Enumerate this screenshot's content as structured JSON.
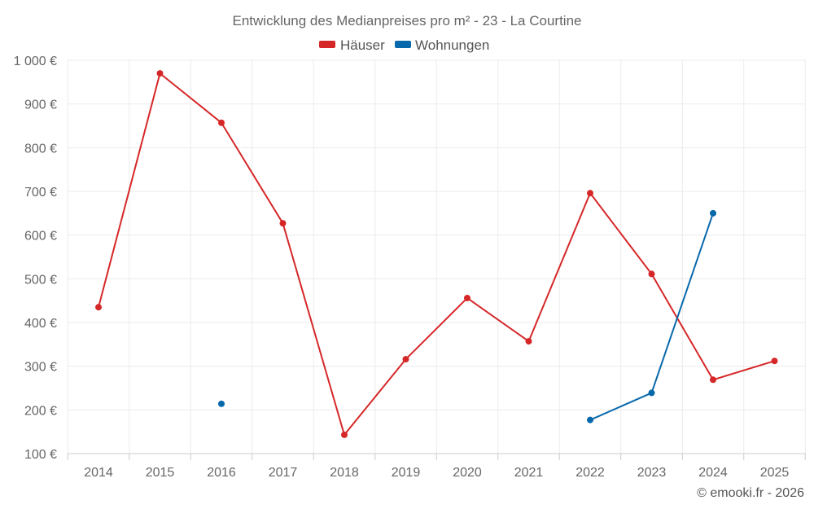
{
  "chart_data": {
    "type": "line",
    "title": "Entwicklung des Medianpreises pro m² - 23 - La Courtine",
    "categories": [
      "2014",
      "2015",
      "2016",
      "2017",
      "2018",
      "2019",
      "2020",
      "2021",
      "2022",
      "2023",
      "2024",
      "2025"
    ],
    "ylim": [
      100,
      1000
    ],
    "yticks": [
      100,
      200,
      300,
      400,
      500,
      600,
      700,
      800,
      900,
      1000
    ],
    "ytick_labels": [
      "100 €",
      "200 €",
      "300 €",
      "400 €",
      "500 €",
      "600 €",
      "700 €",
      "800 €",
      "900 €",
      "1 000 €"
    ],
    "grid": true,
    "legend_position": "top-center",
    "series": [
      {
        "name": "Häuser",
        "color": "#d62728",
        "values": [
          435,
          970,
          857,
          627,
          143,
          316,
          456,
          357,
          696,
          511,
          269,
          312
        ]
      },
      {
        "name": "Wohnungen",
        "color": "#0868ac",
        "values": [
          null,
          null,
          214,
          null,
          null,
          null,
          null,
          null,
          177,
          239,
          650,
          null
        ]
      }
    ]
  },
  "credit": "© emooki.fr - 2026"
}
